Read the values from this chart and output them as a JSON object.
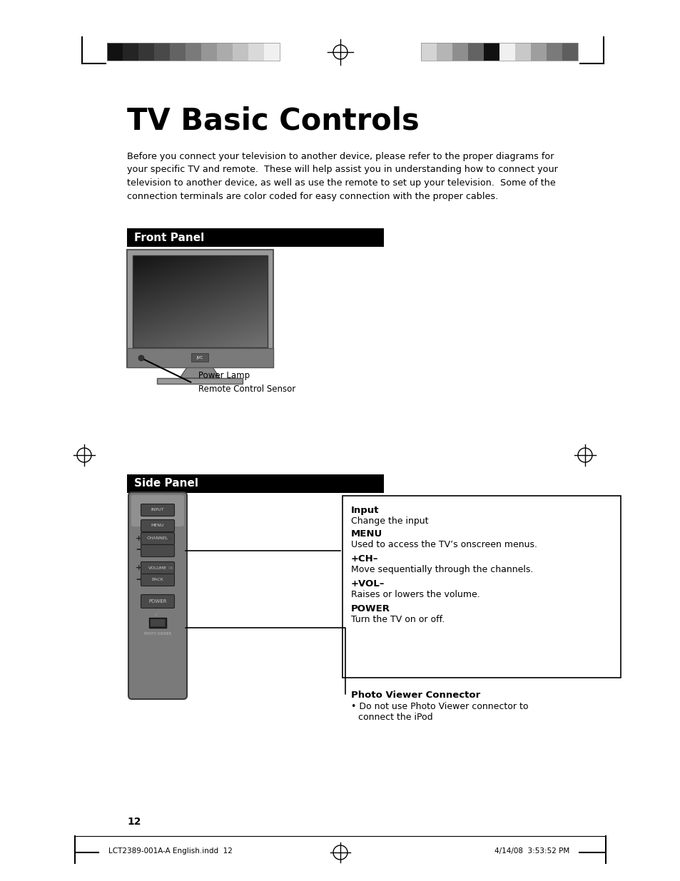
{
  "page_bg": "#ffffff",
  "title": "TV Basic Controls",
  "intro_text": "Before you connect your television to another device, please refer to the proper diagrams for\nyour specific TV and remote.  These will help assist you in understanding how to connect your\ntelevision to another device, as well as use the remote to set up your television.  Some of the\nconnection terminals are color coded for easy connection with the proper cables.",
  "front_panel_label": "Front Panel",
  "side_panel_label": "Side Panel",
  "power_lamp_label": "Power Lamp",
  "remote_sensor_label": "Remote Control Sensor",
  "callout_input_bold": "Input",
  "callout_input_text": "Change the input",
  "callout_menu_bold": "MENU",
  "callout_menu_text": "Used to access the TV’s onscreen menus.",
  "callout_ch_bold": "+CH–",
  "callout_ch_text": "Move sequentially through the channels.",
  "callout_vol_bold": "+VOL–",
  "callout_vol_text": "Raises or lowers the volume.",
  "callout_power_bold": "POWER",
  "callout_power_text": "Turn the TV on or off.",
  "photo_bold": "Photo Viewer Connector",
  "photo_bullet": "• Do not use Photo Viewer connector to",
  "photo_bullet2": "  connect the iPod",
  "page_number": "12",
  "footer_left": "LCT2389-001A-A English.indd  12",
  "footer_right": "4/14/08  3:53:52 PM",
  "hdr_left_colors": [
    "#111111",
    "#242424",
    "#363636",
    "#494949",
    "#636363",
    "#7a7a7a",
    "#969696",
    "#ababab",
    "#c2c2c2",
    "#d9d9d9",
    "#f0f0f0"
  ],
  "hdr_right_colors": [
    "#d4d4d4",
    "#b5b5b5",
    "#8e8e8e",
    "#636363",
    "#111111",
    "#f0f0f0",
    "#c8c8c8",
    "#9e9e9e",
    "#7a7a7a",
    "#5e5e5e"
  ]
}
